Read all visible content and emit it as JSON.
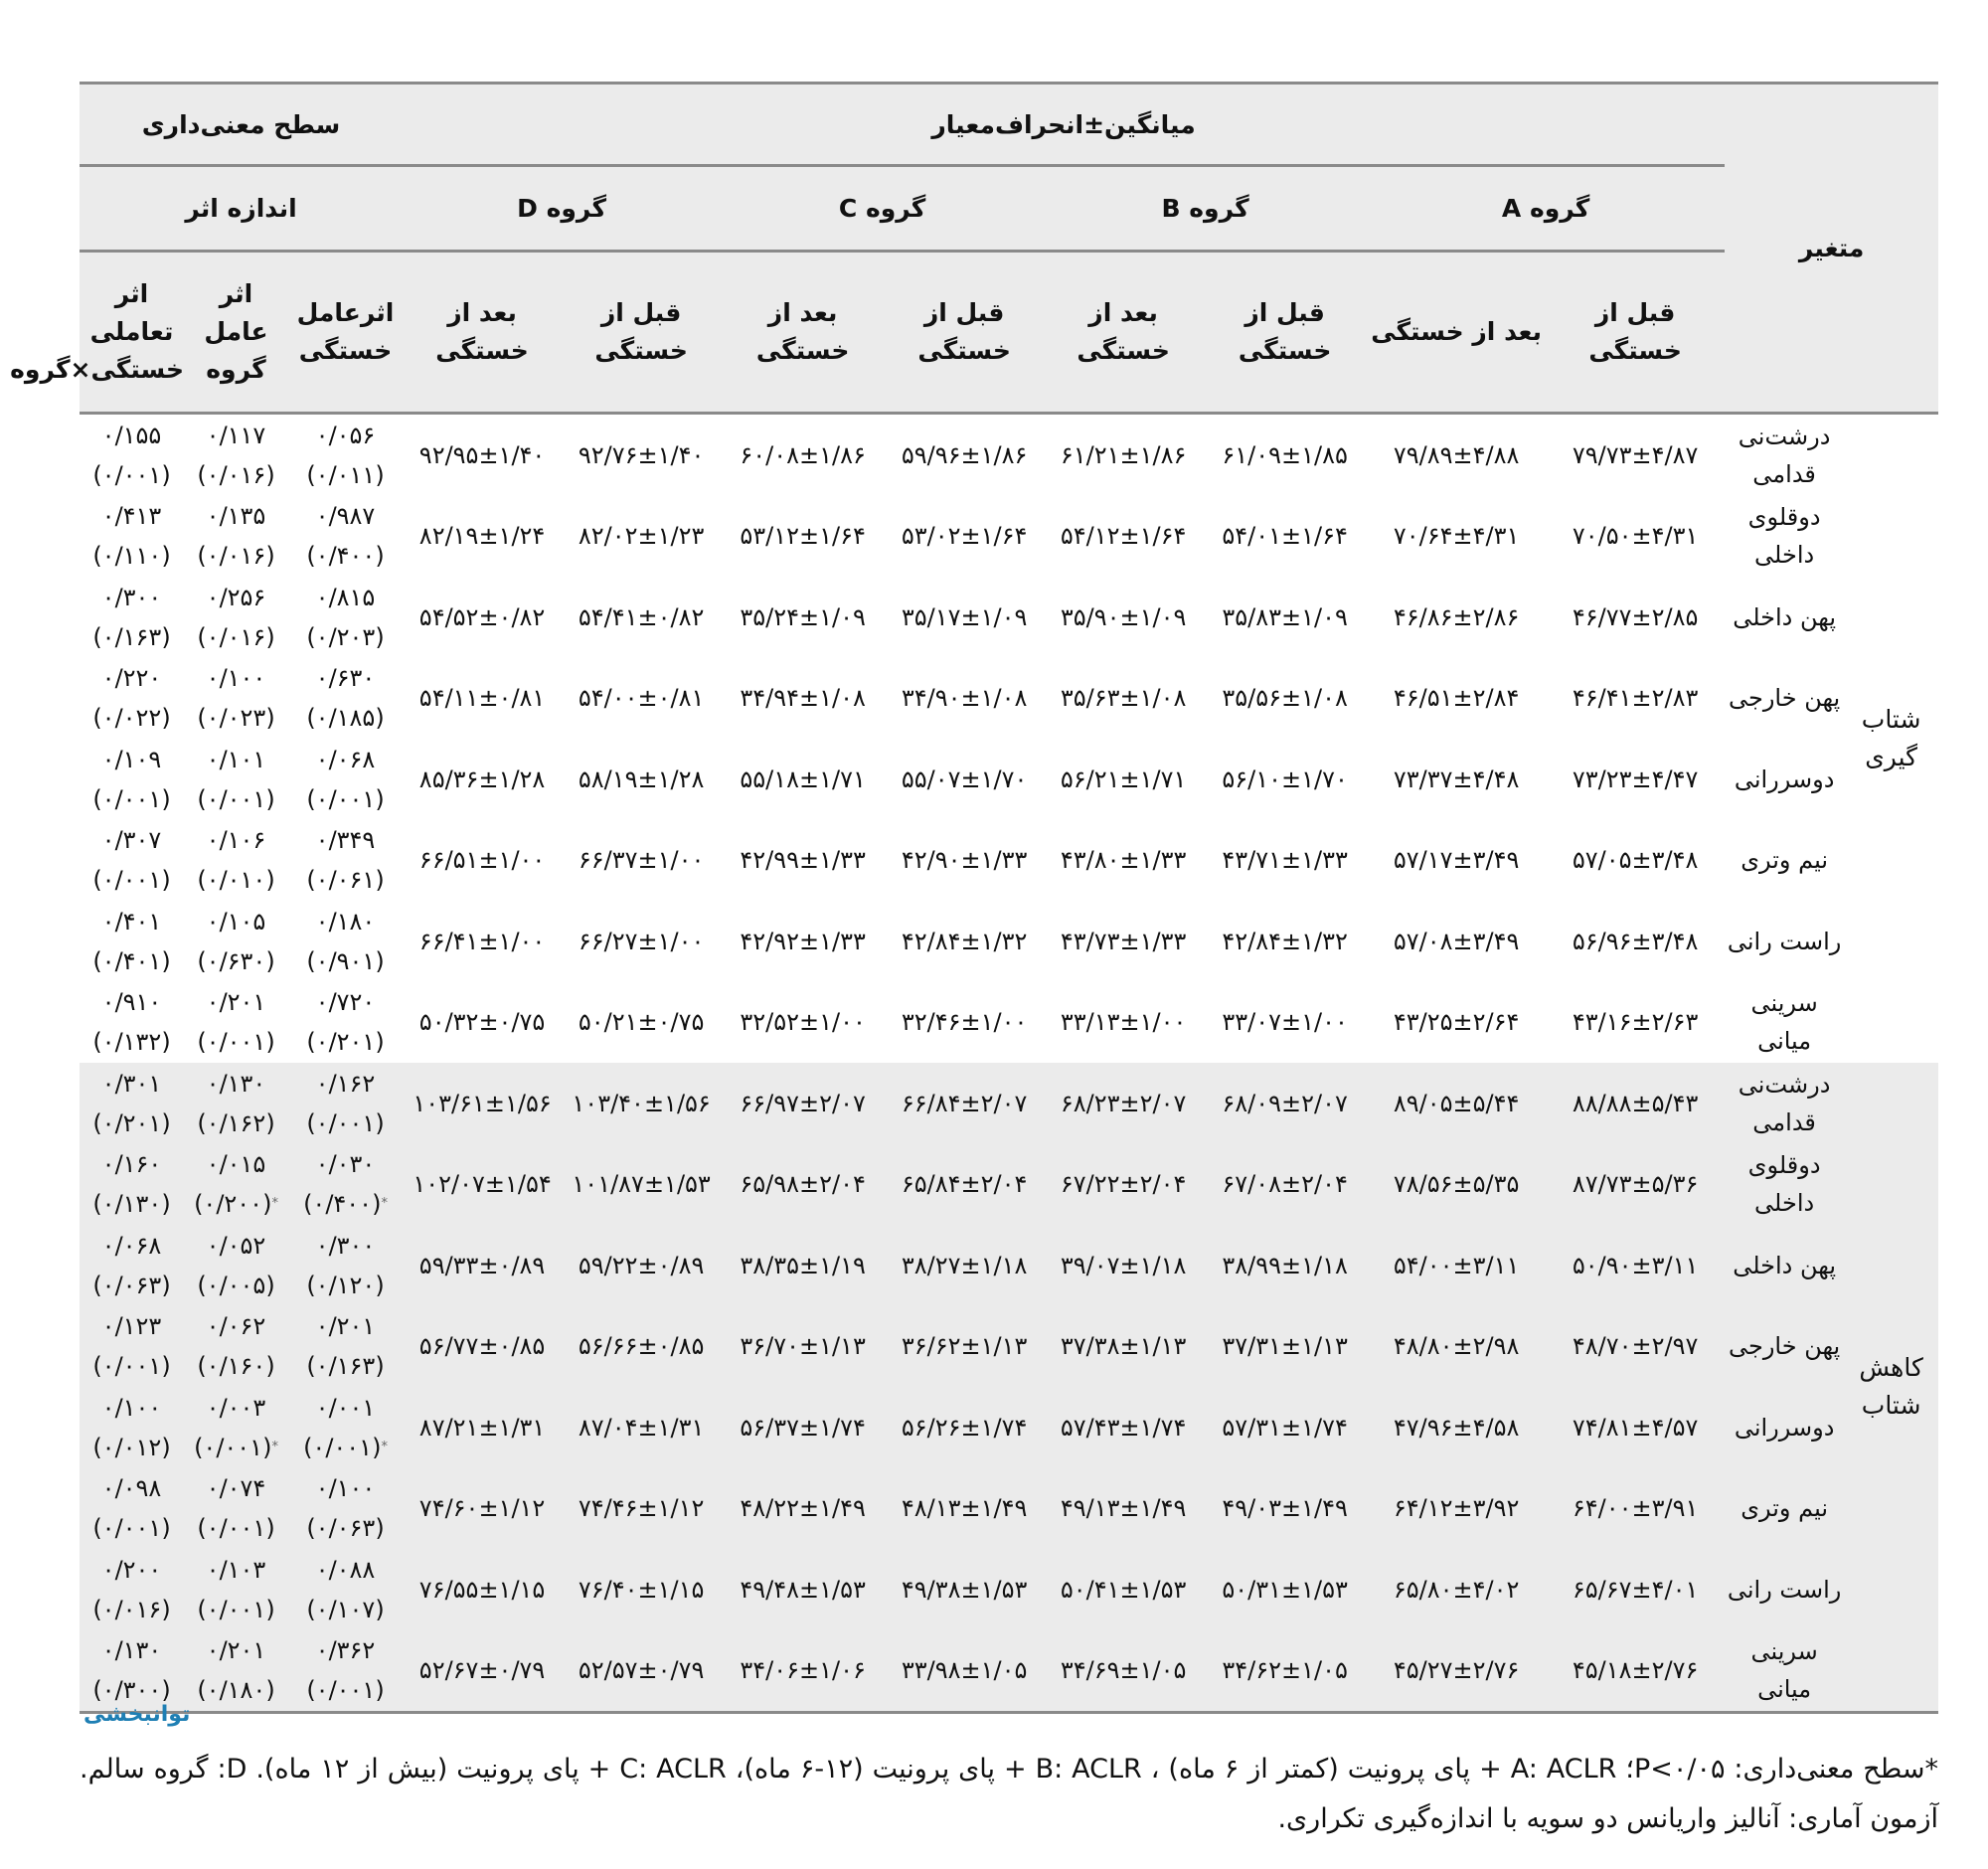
{
  "header": {
    "variable": "متغیر",
    "mean_sd": "میانگین±انحراف‌معیار",
    "significance": "سطح معنی‌داری",
    "effect_size": "اندازه اثر",
    "groups": [
      "گروه A",
      "گروه B",
      "گروه C",
      "گروه D"
    ],
    "before": "قبل از خستگی",
    "after": "بعد از خستگی",
    "effect_fatigue": "اثرعامل خستگی",
    "effect_group": "اثر عامل گروه",
    "effect_interaction": "اثر تعاملی خستگی×گروه"
  },
  "sections": [
    {
      "label": "شتاب گیری",
      "rows": [
        {
          "variable": "درشت‌نی قدامی",
          "cells": [
            "۷۹/۷۳±۴/۸۷",
            "۷۹/۸۹±۴/۸۸",
            "۶۱/۰۹±۱/۸۵",
            "۶۱/۲۱±۱/۸۶",
            "۵۹/۹۶±۱/۸۶",
            "۶۰/۰۸±۱/۸۶",
            "۹۲/۷۶±۱/۴۰",
            "۹۲/۹۵±۱/۴۰"
          ],
          "effects": [
            {
              "v": "۰/۰۵۶",
              "p": "(۰/۰۱۱)",
              "star": false
            },
            {
              "v": "۰/۱۱۷",
              "p": "(۰/۰۱۶)",
              "star": false
            },
            {
              "v": "۰/۱۵۵",
              "p": "(۰/۰۰۱)",
              "star": false
            }
          ]
        },
        {
          "variable": "دوقلوی داخلی",
          "cells": [
            "۷۰/۵۰±۴/۳۱",
            "۷۰/۶۴±۴/۳۱",
            "۵۴/۰۱±۱/۶۴",
            "۵۴/۱۲±۱/۶۴",
            "۵۳/۰۲±۱/۶۴",
            "۵۳/۱۲±۱/۶۴",
            "۸۲/۰۲±۱/۲۳",
            "۸۲/۱۹±۱/۲۴"
          ],
          "effects": [
            {
              "v": "۰/۹۸۷",
              "p": "(۰/۴۰۰)",
              "star": false
            },
            {
              "v": "۰/۱۳۵",
              "p": "(۰/۰۱۶)",
              "star": false
            },
            {
              "v": "۰/۴۱۳",
              "p": "(۰/۱۱۰)",
              "star": false
            }
          ]
        },
        {
          "variable": "پهن داخلی",
          "cells": [
            "۴۶/۷۷±۲/۸۵",
            "۴۶/۸۶±۲/۸۶",
            "۳۵/۸۳±۱/۰۹",
            "۳۵/۹۰±۱/۰۹",
            "۳۵/۱۷±۱/۰۹",
            "۳۵/۲۴±۱/۰۹",
            "۵۴/۴۱±۰/۸۲",
            "۵۴/۵۲±۰/۸۲"
          ],
          "effects": [
            {
              "v": "۰/۸۱۵",
              "p": "(۰/۲۰۳)",
              "star": false
            },
            {
              "v": "۰/۲۵۶",
              "p": "(۰/۰۱۶)",
              "star": false
            },
            {
              "v": "۰/۳۰۰",
              "p": "(۰/۱۶۳)",
              "star": false
            }
          ]
        },
        {
          "variable": "پهن خارجی",
          "cells": [
            "۴۶/۴۱±۲/۸۳",
            "۴۶/۵۱±۲/۸۴",
            "۳۵/۵۶±۱/۰۸",
            "۳۵/۶۳±۱/۰۸",
            "۳۴/۹۰±۱/۰۸",
            "۳۴/۹۴±۱/۰۸",
            "۵۴/۰۰±۰/۸۱",
            "۵۴/۱۱±۰/۸۱"
          ],
          "effects": [
            {
              "v": "۰/۶۳۰",
              "p": "(۰/۱۸۵)",
              "star": false
            },
            {
              "v": "۰/۱۰۰",
              "p": "(۰/۰۲۳)",
              "star": false
            },
            {
              "v": "۰/۲۲۰",
              "p": "(۰/۰۲۲)",
              "star": false
            }
          ]
        },
        {
          "variable": "دوسررانی",
          "cells": [
            "۷۳/۲۳±۴/۴۷",
            "۷۳/۳۷±۴/۴۸",
            "۵۶/۱۰±۱/۷۰",
            "۵۶/۲۱±۱/۷۱",
            "۵۵/۰۷±۱/۷۰",
            "۵۵/۱۸±۱/۷۱",
            "۵۸/۱۹±۱/۲۸",
            "۸۵/۳۶±۱/۲۸"
          ],
          "effects": [
            {
              "v": "۰/۰۶۸",
              "p": "(۰/۰۰۱)",
              "star": false
            },
            {
              "v": "۰/۱۰۱",
              "p": "(۰/۰۰۱)",
              "star": false
            },
            {
              "v": "۰/۱۰۹",
              "p": "(۰/۰۰۱)",
              "star": false
            }
          ]
        },
        {
          "variable": "نیم وتری",
          "cells": [
            "۵۷/۰۵±۳/۴۸",
            "۵۷/۱۷±۳/۴۹",
            "۴۳/۷۱±۱/۳۳",
            "۴۳/۸۰±۱/۳۳",
            "۴۲/۹۰±۱/۳۳",
            "۴۲/۹۹±۱/۳۳",
            "۶۶/۳۷±۱/۰۰",
            "۶۶/۵۱±۱/۰۰"
          ],
          "effects": [
            {
              "v": "۰/۳۴۹",
              "p": "(۰/۰۶۱)",
              "star": false
            },
            {
              "v": "۰/۱۰۶",
              "p": "(۰/۰۱۰)",
              "star": false
            },
            {
              "v": "۰/۳۰۷",
              "p": "(۰/۰۰۱)",
              "star": false
            }
          ]
        },
        {
          "variable": "راست رانی",
          "cells": [
            "۵۶/۹۶±۳/۴۸",
            "۵۷/۰۸±۳/۴۹",
            "۴۲/۸۴±۱/۳۲",
            "۴۳/۷۳±۱/۳۳",
            "۴۲/۸۴±۱/۳۲",
            "۴۲/۹۲±۱/۳۳",
            "۶۶/۲۷±۱/۰۰",
            "۶۶/۴۱±۱/۰۰"
          ],
          "effects": [
            {
              "v": "۰/۱۸۰",
              "p": "(۰/۹۰۱)",
              "star": false
            },
            {
              "v": "۰/۱۰۵",
              "p": "(۰/۶۳۰)",
              "star": false
            },
            {
              "v": "۰/۴۰۱",
              "p": "(۰/۴۰۱)",
              "star": false
            }
          ]
        },
        {
          "variable": "سرینی میانی",
          "cells": [
            "۴۳/۱۶±۲/۶۳",
            "۴۳/۲۵±۲/۶۴",
            "۳۳/۰۷±۱/۰۰",
            "۳۳/۱۳±۱/۰۰",
            "۳۲/۴۶±۱/۰۰",
            "۳۲/۵۲±۱/۰۰",
            "۵۰/۲۱±۰/۷۵",
            "۵۰/۳۲±۰/۷۵"
          ],
          "effects": [
            {
              "v": "۰/۷۲۰",
              "p": "(۰/۲۰۱)",
              "star": false
            },
            {
              "v": "۰/۲۰۱",
              "p": "(۰/۰۰۱)",
              "star": false
            },
            {
              "v": "۰/۹۱۰",
              "p": "(۰/۱۳۲)",
              "star": false
            }
          ]
        }
      ]
    },
    {
      "label": "کاهش شتاب",
      "rows": [
        {
          "variable": "درشت‌نی قدامی",
          "cells": [
            "۸۸/۸۸±۵/۴۳",
            "۸۹/۰۵±۵/۴۴",
            "۶۸/۰۹±۲/۰۷",
            "۶۸/۲۳±۲/۰۷",
            "۶۶/۸۴±۲/۰۷",
            "۶۶/۹۷±۲/۰۷",
            "۱۰۳/۴۰±۱/۵۶",
            "۱۰۳/۶۱±۱/۵۶"
          ],
          "effects": [
            {
              "v": "۰/۱۶۲",
              "p": "(۰/۰۰۱)",
              "star": false
            },
            {
              "v": "۰/۱۳۰",
              "p": "(۰/۱۶۲)",
              "star": false
            },
            {
              "v": "۰/۳۰۱",
              "p": "(۰/۲۰۱)",
              "star": false
            }
          ]
        },
        {
          "variable": "دوقلوی داخلی",
          "cells": [
            "۸۷/۷۳±۵/۳۶",
            "۷۸/۵۶±۵/۳۵",
            "۶۷/۰۸±۲/۰۴",
            "۶۷/۲۲±۲/۰۴",
            "۶۵/۸۴±۲/۰۴",
            "۶۵/۹۸±۲/۰۴",
            "۱۰۱/۸۷±۱/۵۳",
            "۱۰۲/۰۷±۱/۵۴"
          ],
          "effects": [
            {
              "v": "۰/۰۳۰",
              "p": "(۰/۴۰۰)",
              "star": true
            },
            {
              "v": "۰/۰۱۵",
              "p": "(۰/۲۰۰)",
              "star": true
            },
            {
              "v": "۰/۱۶۰",
              "p": "(۰/۱۳۰)",
              "star": false
            }
          ]
        },
        {
          "variable": "پهن داخلی",
          "cells": [
            "۵۰/۹۰±۳/۱۱",
            "۵۴/۰۰±۳/۱۱",
            "۳۸/۹۹±۱/۱۸",
            "۳۹/۰۷±۱/۱۸",
            "۳۸/۲۷±۱/۱۸",
            "۳۸/۳۵±۱/۱۹",
            "۵۹/۲۲±۰/۸۹",
            "۵۹/۳۳±۰/۸۹"
          ],
          "effects": [
            {
              "v": "۰/۳۰۰",
              "p": "(۰/۱۲۰)",
              "star": false
            },
            {
              "v": "۰/۰۵۲",
              "p": "(۰/۰۰۵)",
              "star": false
            },
            {
              "v": "۰/۰۶۸",
              "p": "(۰/۰۶۳)",
              "star": false
            }
          ]
        },
        {
          "variable": "پهن خارجی",
          "cells": [
            "۴۸/۷۰±۲/۹۷",
            "۴۸/۸۰±۲/۹۸",
            "۳۷/۳۱±۱/۱۳",
            "۳۷/۳۸±۱/۱۳",
            "۳۶/۶۲±۱/۱۳",
            "۳۶/۷۰±۱/۱۳",
            "۵۶/۶۶±۰/۸۵",
            "۵۶/۷۷±۰/۸۵"
          ],
          "effects": [
            {
              "v": "۰/۲۰۱",
              "p": "(۰/۱۶۳)",
              "star": false
            },
            {
              "v": "۰/۰۶۲",
              "p": "(۰/۱۶۰)",
              "star": false
            },
            {
              "v": "۰/۱۲۳",
              "p": "(۰/۰۰۱)",
              "star": false
            }
          ]
        },
        {
          "variable": "دوسررانی",
          "cells": [
            "۷۴/۸۱±۴/۵۷",
            "۴۷/۹۶±۴/۵۸",
            "۵۷/۳۱±۱/۷۴",
            "۵۷/۴۳±۱/۷۴",
            "۵۶/۲۶±۱/۷۴",
            "۵۶/۳۷±۱/۷۴",
            "۸۷/۰۴±۱/۳۱",
            "۸۷/۲۱±۱/۳۱"
          ],
          "effects": [
            {
              "v": "۰/۰۰۱",
              "p": "(۰/۰۰۱)",
              "star": true
            },
            {
              "v": "۰/۰۰۳",
              "p": "(۰/۰۰۱)",
              "star": true
            },
            {
              "v": "۰/۱۰۰",
              "p": "(۰/۰۱۲)",
              "star": false
            }
          ]
        },
        {
          "variable": "نیم وتری",
          "cells": [
            "۶۴/۰۰±۳/۹۱",
            "۶۴/۱۲±۳/۹۲",
            "۴۹/۰۳±۱/۴۹",
            "۴۹/۱۳±۱/۴۹",
            "۴۸/۱۳±۱/۴۹",
            "۴۸/۲۲±۱/۴۹",
            "۷۴/۴۶±۱/۱۲",
            "۷۴/۶۰±۱/۱۲"
          ],
          "effects": [
            {
              "v": "۰/۱۰۰",
              "p": "(۰/۰۶۳)",
              "star": false
            },
            {
              "v": "۰/۰۷۴",
              "p": "(۰/۰۰۱)",
              "star": false
            },
            {
              "v": "۰/۰۹۸",
              "p": "(۰/۰۰۱)",
              "star": false
            }
          ]
        },
        {
          "variable": "راست رانی",
          "cells": [
            "۶۵/۶۷±۴/۰۱",
            "۶۵/۸۰±۴/۰۲",
            "۵۰/۳۱±۱/۵۳",
            "۵۰/۴۱±۱/۵۳",
            "۴۹/۳۸±۱/۵۳",
            "۴۹/۴۸±۱/۵۳",
            "۷۶/۴۰±۱/۱۵",
            "۷۶/۵۵±۱/۱۵"
          ],
          "effects": [
            {
              "v": "۰/۰۸۸",
              "p": "(۰/۱۰۷)",
              "star": false
            },
            {
              "v": "۰/۱۰۳",
              "p": "(۰/۰۰۱)",
              "star": false
            },
            {
              "v": "۰/۲۰۰",
              "p": "(۰/۰۱۶)",
              "star": false
            }
          ]
        },
        {
          "variable": "سرینی میانی",
          "cells": [
            "۴۵/۱۸±۲/۷۶",
            "۴۵/۲۷±۲/۷۶",
            "۳۴/۶۲±۱/۰۵",
            "۳۴/۶۹±۱/۰۵",
            "۳۳/۹۸±۱/۰۵",
            "۳۴/۰۶±۱/۰۶",
            "۵۲/۵۷±۰/۷۹",
            "۵۲/۶۷±۰/۷۹"
          ],
          "effects": [
            {
              "v": "۰/۳۶۲",
              "p": "(۰/۰۰۱)",
              "star": false
            },
            {
              "v": "۰/۲۰۱",
              "p": "(۰/۱۸۰)",
              "star": false
            },
            {
              "v": "۰/۱۳۰",
              "p": "(۰/۳۰۰)",
              "star": false
            }
          ]
        }
      ]
    }
  ],
  "star_symbol": "*",
  "logo": "توانبخشی",
  "footnote": "*سطح معنی‌داری: P<۰/۰۵؛ A: ACLR + پای پرونیت (کمتر از ۶ ماه) ، B: ACLR + پای پرونیت (۱۲-۶ ماه)، C: ACLR + پای پرونیت (بیش از ۱۲ ماه). D: گروه سالم. آزمون آماری: آنالیز واریانس دو سویه با اندازه‌گیری تکراری.",
  "colors": {
    "header_bg": "#ebebeb",
    "rule": "#8a8a8a",
    "logo": "#1f7fb4"
  }
}
